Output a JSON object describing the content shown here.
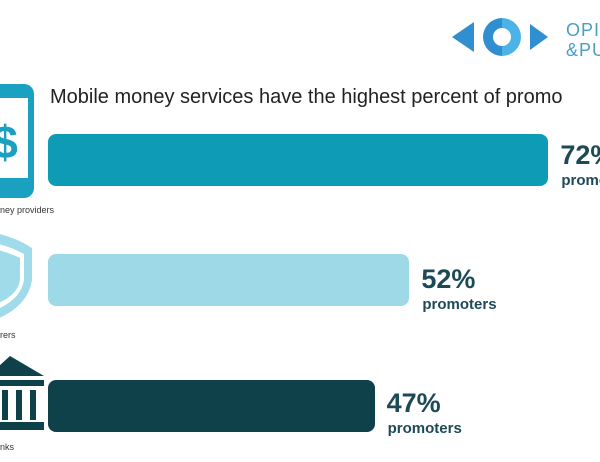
{
  "brand": {
    "logo_line1": "OPI",
    "logo_line2": "&PU",
    "accent": "#2f8fd0"
  },
  "chart_data": {
    "type": "bar",
    "orientation": "horizontal",
    "title": "Mobile money services have the highest percent of promo",
    "categories": [
      "ney providers",
      "rers",
      "nks"
    ],
    "values": [
      72,
      52,
      47
    ],
    "value_labels": [
      "72%",
      "52%",
      "47%"
    ],
    "unit_label": "promoters",
    "unit_label_first": "promot",
    "colors": [
      "#0e9bb5",
      "#9dd9e6",
      "#0f414a"
    ],
    "xlim": [
      0,
      100
    ]
  }
}
